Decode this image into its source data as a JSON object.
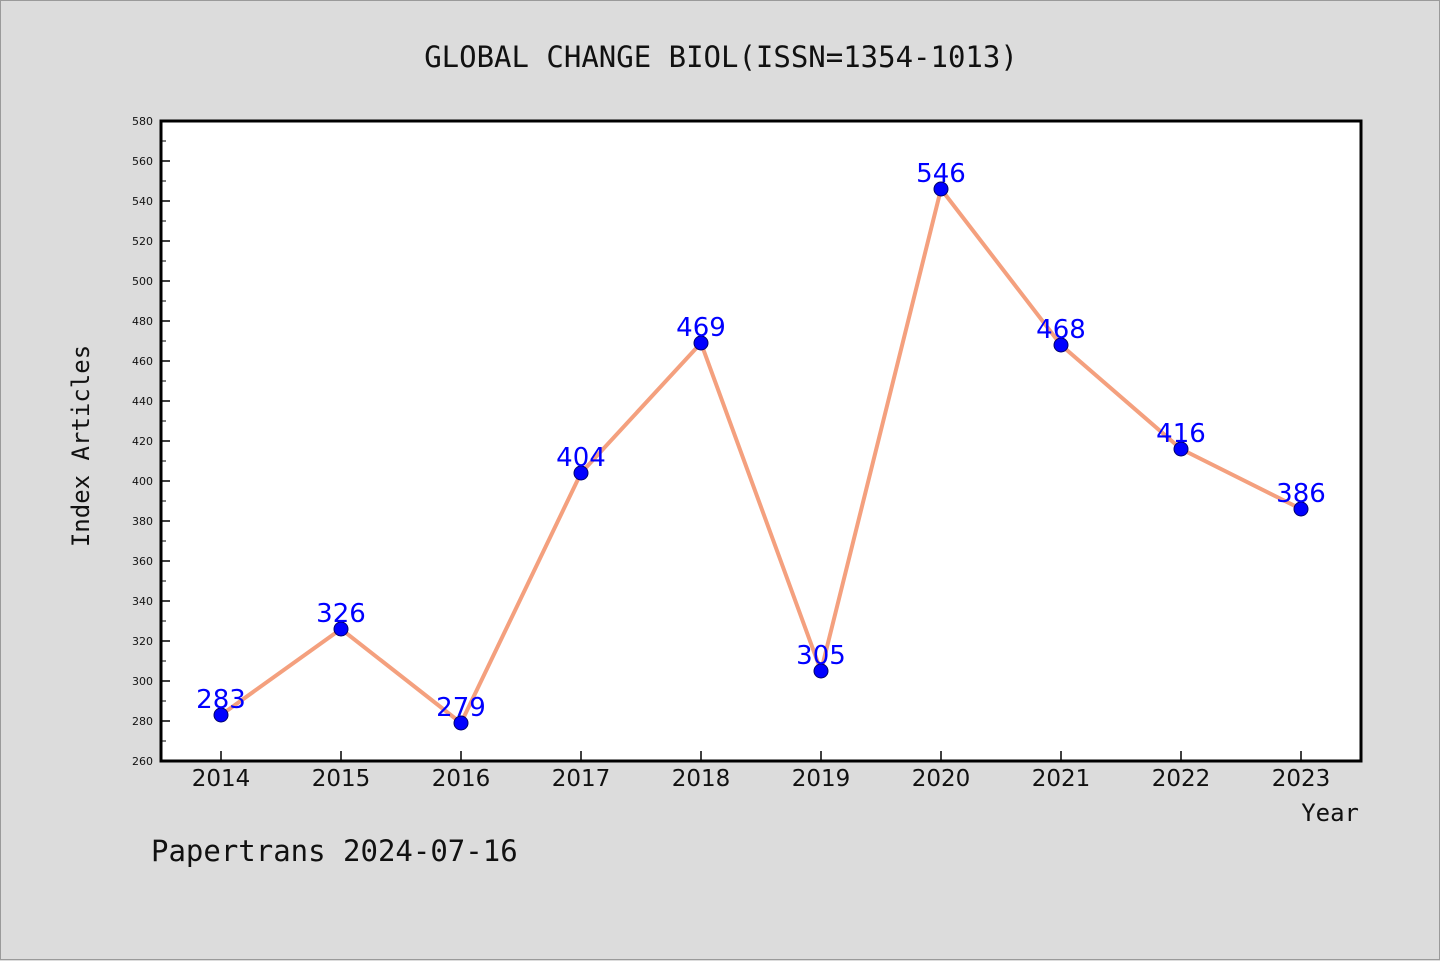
{
  "footer_text": "Papertrans 2024-07-16",
  "colors": {
    "background": "#dcdcdc",
    "plot_background": "#ffffff",
    "line": "#f4a07e",
    "marker": "#0000ff",
    "data_label": "#0000ff"
  },
  "chart_data": {
    "type": "line",
    "title": "GLOBAL CHANGE BIOL(ISSN=1354-1013)",
    "xlabel": "Year",
    "ylabel": "Index Articles",
    "categories": [
      "2014",
      "2015",
      "2016",
      "2017",
      "2018",
      "2019",
      "2020",
      "2021",
      "2022",
      "2023"
    ],
    "series": [
      {
        "values": [
          283,
          326,
          279,
          404,
          469,
          305,
          546,
          468,
          416,
          386
        ]
      }
    ],
    "ylim": [
      260,
      580
    ],
    "yticks": [
      260,
      280,
      300,
      320,
      340,
      360,
      380,
      400,
      420,
      440,
      460,
      480,
      500,
      520,
      540,
      560,
      580
    ],
    "grid": false,
    "legend": "none",
    "data_labels": true
  }
}
